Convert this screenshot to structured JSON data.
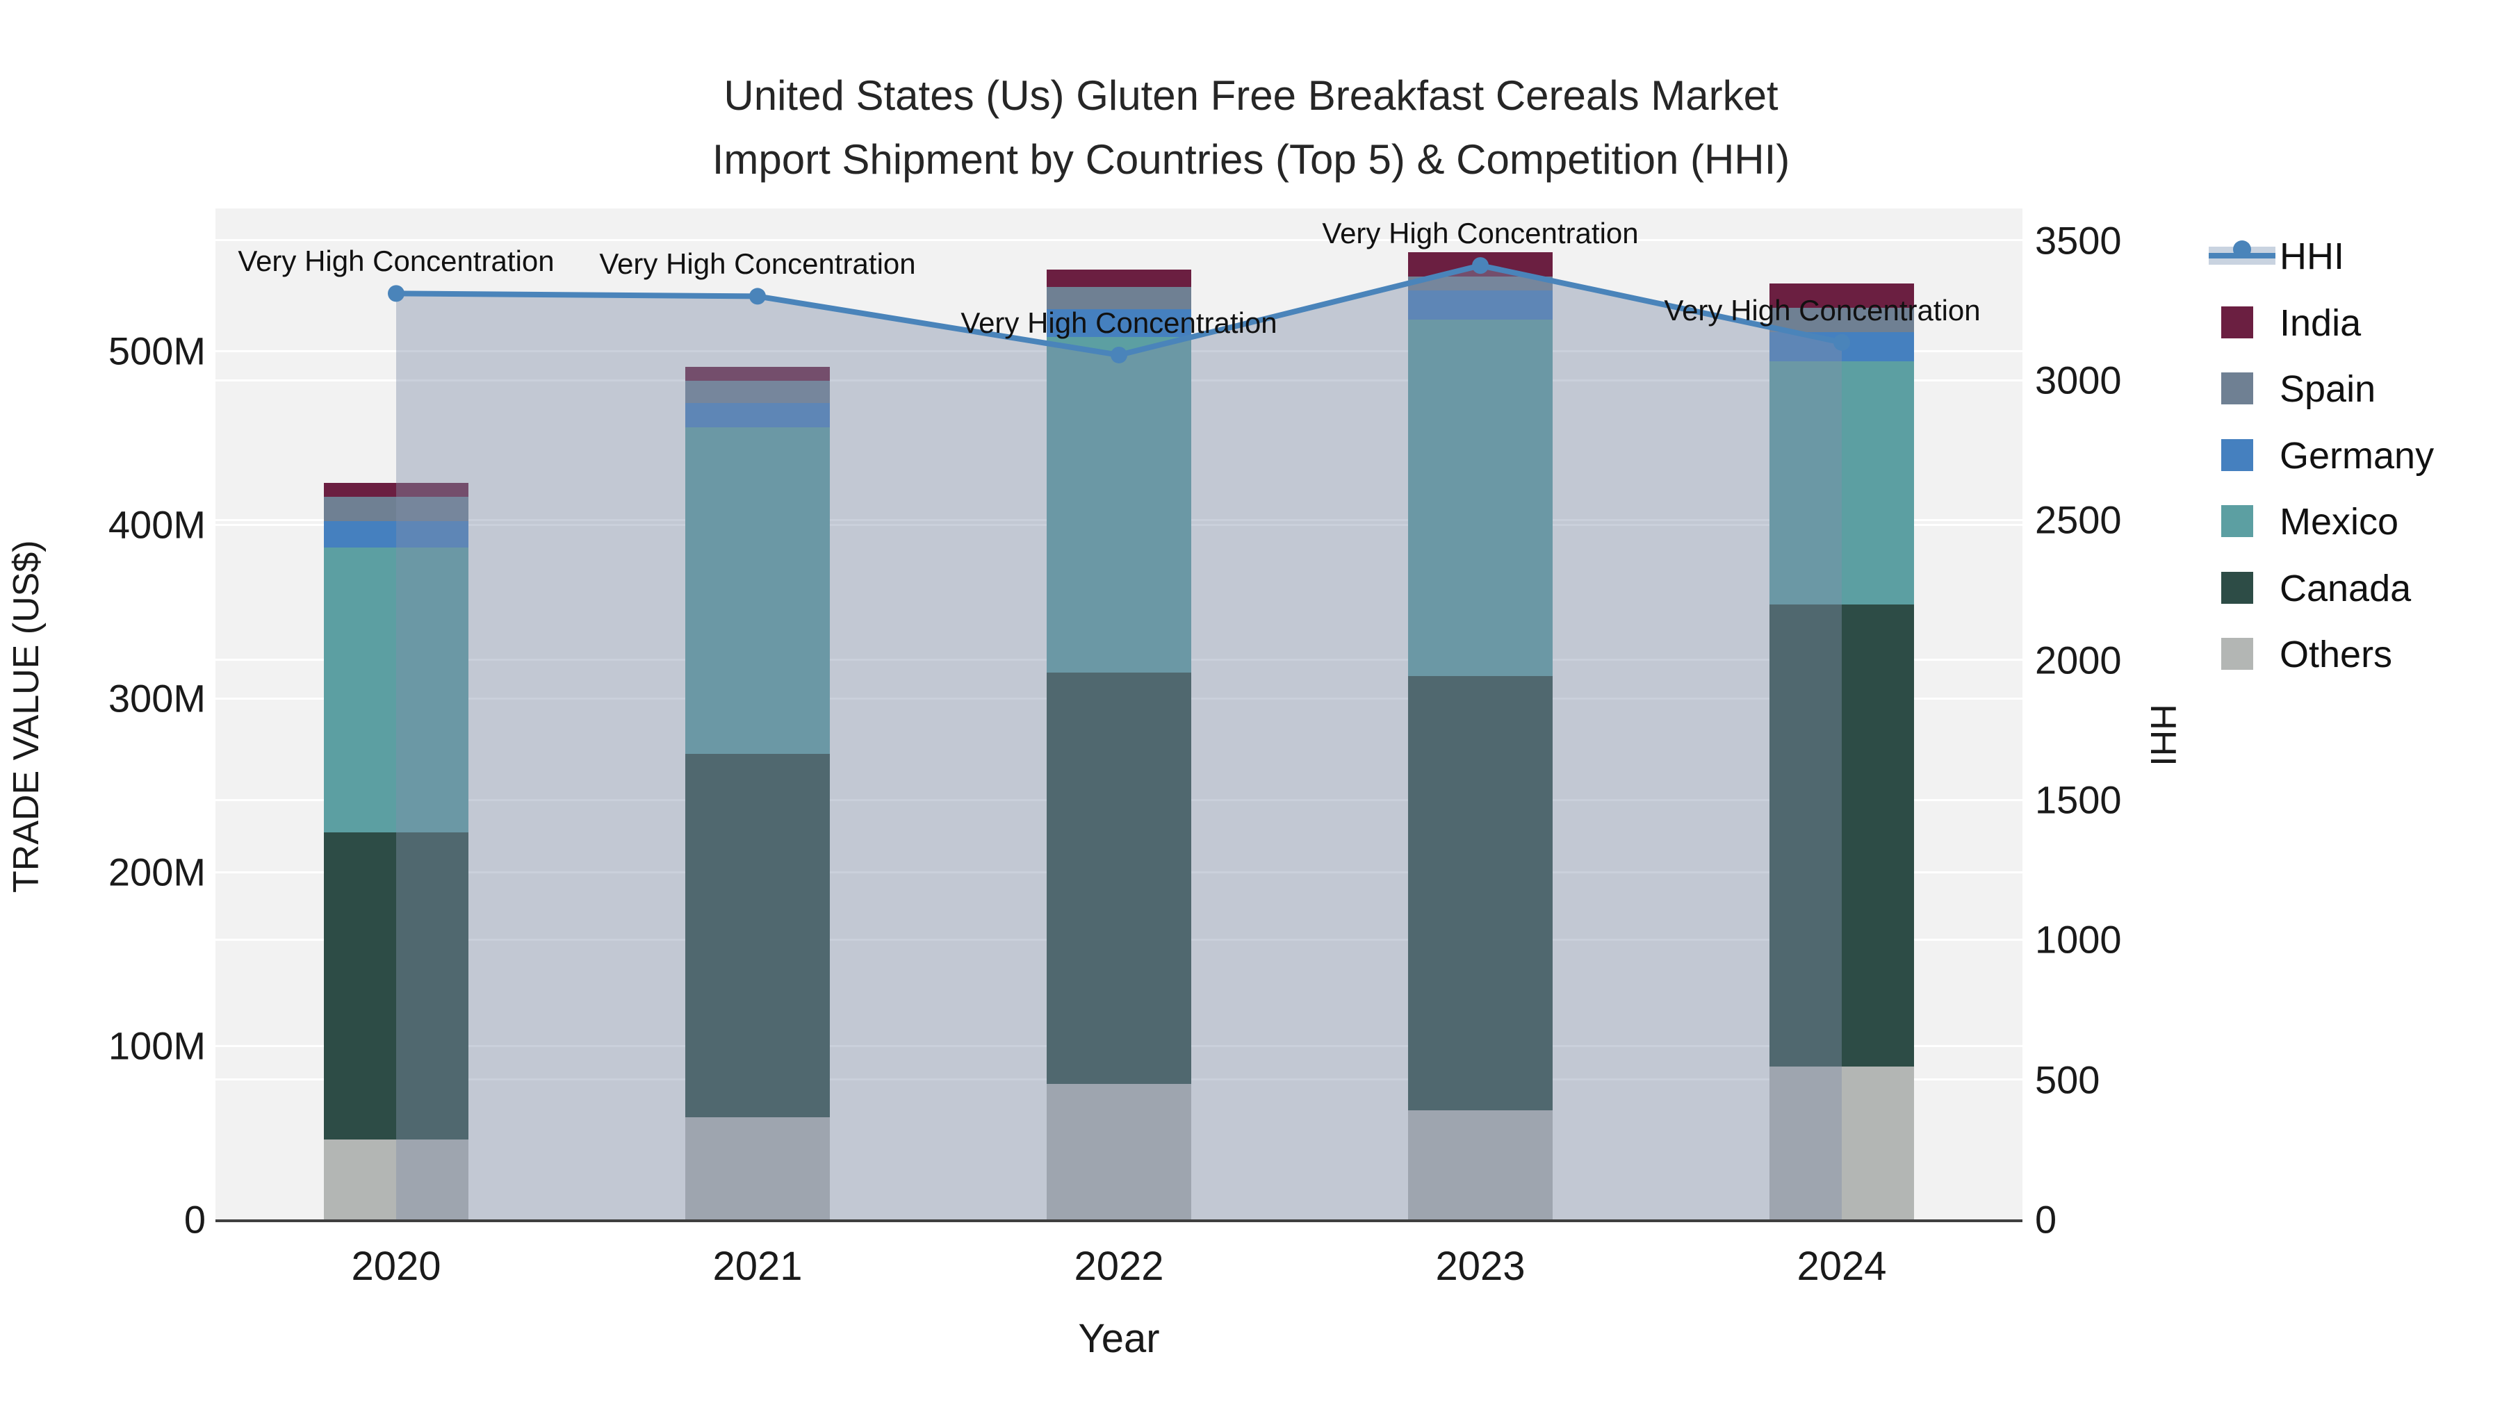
{
  "title": {
    "line1": "United States (Us) Gluten Free Breakfast Cereals Market",
    "line2": "Import Shipment by Countries (Top 5) & Competition (HHI)"
  },
  "axes": {
    "x": {
      "title": "Year",
      "categories": [
        "2020",
        "2021",
        "2022",
        "2023",
        "2024"
      ]
    },
    "y_left": {
      "title": "TRADE VALUE (US$)",
      "tick_labels": [
        "0",
        "100M",
        "200M",
        "300M",
        "400M",
        "500M"
      ],
      "tick_values": [
        0,
        100,
        200,
        300,
        400,
        500
      ]
    },
    "y_right": {
      "title": "HHI",
      "tick_labels": [
        "0",
        "500",
        "1000",
        "1500",
        "2000",
        "2500",
        "3000",
        "3500"
      ],
      "tick_values": [
        0,
        500,
        1000,
        1500,
        2000,
        2500,
        3000,
        3500
      ]
    }
  },
  "legend": {
    "order": [
      "HHI",
      "India",
      "Spain",
      "Germany",
      "Mexico",
      "Canada",
      "Others"
    ]
  },
  "colors": {
    "plot_background": "#f2f2f2",
    "paper_background": "#ffffff",
    "gridline": "#ffffff",
    "axis_line": "#3f3f3f",
    "hhi_line": "#4a84ba",
    "hhi_area_fill": "rgba(128,144,170,0.42)",
    "India": "#6b1f41",
    "Spain": "#6f8093",
    "Germany": "#4580bf",
    "Mexico": "#5c9fa2",
    "Canada": "#2d4c46",
    "Others": "#b3b6b4"
  },
  "chart_data": [
    {
      "type": "bar",
      "stacked": true,
      "title": "Import Shipment by Countries (Top 5)",
      "unit": "M US$",
      "categories": [
        "2020",
        "2021",
        "2022",
        "2023",
        "2024"
      ],
      "series": [
        {
          "name": "Others",
          "color": "#b3b6b4",
          "values": [
            46,
            59,
            78,
            63,
            88
          ]
        },
        {
          "name": "Canada",
          "color": "#2d4c46",
          "values": [
            177,
            209,
            237,
            250,
            266
          ]
        },
        {
          "name": "Mexico",
          "color": "#5c9fa2",
          "values": [
            164,
            188,
            193,
            205,
            140
          ]
        },
        {
          "name": "Germany",
          "color": "#4580bf",
          "values": [
            15,
            14,
            16,
            17,
            17
          ]
        },
        {
          "name": "Spain",
          "color": "#6f8093",
          "values": [
            14,
            13,
            13,
            8,
            14
          ]
        },
        {
          "name": "India",
          "color": "#6b1f41",
          "values": [
            8,
            8,
            10,
            14,
            14
          ]
        }
      ],
      "totals": [
        424,
        491,
        547,
        557,
        539
      ],
      "xlabel": "Year",
      "ylabel": "TRADE VALUE (US$)",
      "ylim": [
        0,
        582
      ],
      "grid": true,
      "legend_position": "right"
    },
    {
      "type": "line",
      "name": "HHI",
      "color": "#4a84ba",
      "area_fill": "rgba(128,144,170,0.42)",
      "categories": [
        "2020",
        "2021",
        "2022",
        "2023",
        "2024"
      ],
      "values": [
        3310,
        3300,
        3090,
        3410,
        3135
      ],
      "ylabel": "HHI",
      "ylim": [
        0,
        3614
      ],
      "annotations": [
        "Very High Concentration",
        "Very High Concentration",
        "Very High Concentration",
        "Very High Concentration",
        "Very High Concentration"
      ],
      "annotation_dx": [
        0,
        0,
        0,
        0,
        -28
      ]
    }
  ]
}
